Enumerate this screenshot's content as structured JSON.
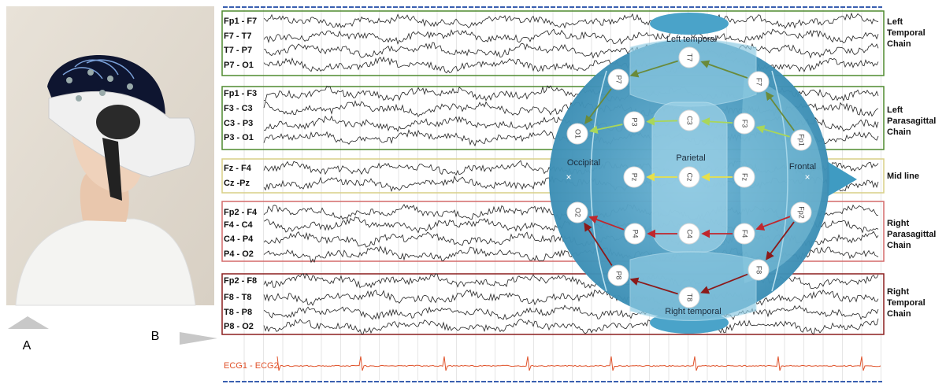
{
  "panel_labels": [
    "A",
    "B"
  ],
  "eeg": {
    "groups": [
      {
        "channels": [
          "Fp1 - F7",
          "F7 - T7",
          "T7 - P7",
          "P7 - O1"
        ],
        "chain": [
          "Left",
          "Temporal",
          "Chain"
        ]
      },
      {
        "channels": [
          "Fp1 - F3",
          "F3 - C3",
          "C3 - P3",
          "P3 - O1"
        ],
        "chain": [
          "Left",
          "Parasagittal",
          "Chain"
        ]
      },
      {
        "channels": [
          "Fz - F4",
          "Cz -Pz"
        ],
        "chain": [
          "Mid line"
        ]
      },
      {
        "channels": [
          "Fp2 - F4",
          "F4 - C4",
          "C4 - P4",
          "P4 - O2"
        ],
        "chain": [
          "Right",
          "Parasagittal",
          "Chain"
        ]
      },
      {
        "channels": [
          "Fp2 - F8",
          "F8 - T8",
          "T8 - P8",
          "P8 - O2"
        ],
        "chain": [
          "Right",
          "Temporal",
          "Chain"
        ]
      }
    ],
    "ecg": "ECG1 - ECG2"
  },
  "head": {
    "regions": [
      "Left temporal",
      "Occipital",
      "Parietal",
      "Frontal",
      "Right temporal"
    ],
    "electrodes": [
      "T7",
      "F7",
      "P7",
      "O1",
      "P3",
      "C3",
      "F3",
      "Fp1",
      "Pz",
      "Cz",
      "Fz",
      "O2",
      "P4",
      "C4",
      "F4",
      "Fp2",
      "P8",
      "F8",
      "T8"
    ]
  }
}
